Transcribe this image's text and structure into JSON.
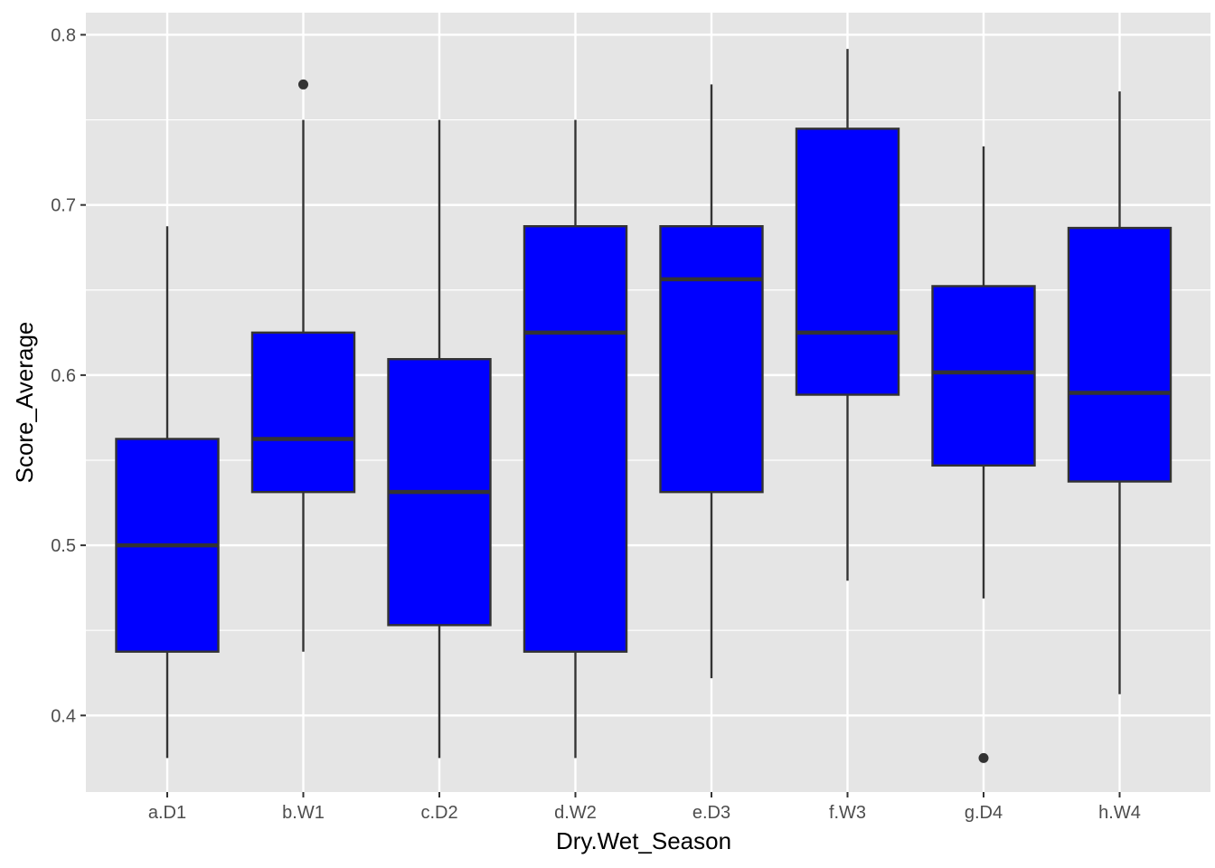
{
  "chart_data": {
    "type": "boxplot",
    "title": "",
    "xlabel": "Dry.Wet_Season",
    "ylabel": "Score_Average",
    "ylim": [
      0.355,
      0.813
    ],
    "y_ticks": [
      "0.4",
      "0.5",
      "0.6",
      "0.7",
      "0.8"
    ],
    "y_tick_values": [
      0.4,
      0.5,
      0.6,
      0.7,
      0.8
    ],
    "y_minor_values": [
      0.45,
      0.55,
      0.65,
      0.75
    ],
    "grid": true,
    "legend": "none",
    "fill_color": "#0000ff",
    "line_color": "#333333",
    "panel_color": "#e5e5e5",
    "grid_color": "#ffffff",
    "categories": [
      "a.D1",
      "b.W1",
      "c.D2",
      "d.W2",
      "e.D3",
      "f.W3",
      "g.D4",
      "h.W4"
    ],
    "boxes": [
      {
        "category": "a.D1",
        "min": 0.375,
        "q1": 0.4375,
        "median": 0.5,
        "q3": 0.5625,
        "max": 0.6875,
        "outliers": []
      },
      {
        "category": "b.W1",
        "min": 0.4375,
        "q1": 0.5313,
        "median": 0.5625,
        "q3": 0.625,
        "max": 0.75,
        "outliers": [
          0.7708
        ]
      },
      {
        "category": "c.D2",
        "min": 0.375,
        "q1": 0.4531,
        "median": 0.5313,
        "q3": 0.6094,
        "max": 0.75,
        "outliers": []
      },
      {
        "category": "d.W2",
        "min": 0.375,
        "q1": 0.4375,
        "median": 0.625,
        "q3": 0.6875,
        "max": 0.75,
        "outliers": []
      },
      {
        "category": "e.D3",
        "min": 0.4219,
        "q1": 0.5313,
        "median": 0.6563,
        "q3": 0.6875,
        "max": 0.7708,
        "outliers": []
      },
      {
        "category": "f.W3",
        "min": 0.4792,
        "q1": 0.5885,
        "median": 0.625,
        "q3": 0.7448,
        "max": 0.7917,
        "outliers": []
      },
      {
        "category": "g.D4",
        "min": 0.4688,
        "q1": 0.5469,
        "median": 0.6016,
        "q3": 0.6523,
        "max": 0.7344,
        "outliers": [
          0.375
        ]
      },
      {
        "category": "h.W4",
        "min": 0.4125,
        "q1": 0.5375,
        "median": 0.5896,
        "q3": 0.6865,
        "max": 0.7667,
        "outliers": []
      }
    ]
  }
}
